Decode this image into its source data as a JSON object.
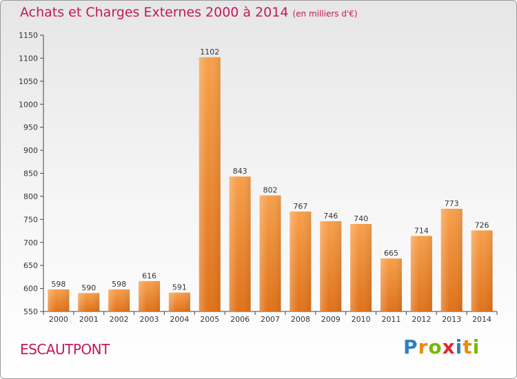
{
  "title": "Achats et Charges Externes 2000 à 2014",
  "subtitle": "(en milliers d'€)",
  "commune": "ESCAUTPONT",
  "logo": {
    "letters": [
      "P",
      "r",
      "o",
      "x",
      "i",
      "t",
      "i"
    ],
    "colors": [
      "#2f7fc1",
      "#f08a00",
      "#7ab800",
      "#e4262b",
      "#2f7fc1",
      "#f08a00",
      "#7ab800"
    ]
  },
  "chart_data": {
    "type": "bar",
    "title": "Achats et Charges Externes 2000 à 2014",
    "subtitle": "(en milliers d'€)",
    "categories": [
      "2000",
      "2001",
      "2002",
      "2003",
      "2004",
      "2005",
      "2006",
      "2007",
      "2008",
      "2009",
      "2010",
      "2011",
      "2012",
      "2013",
      "2014"
    ],
    "values": [
      598,
      590,
      598,
      616,
      591,
      1102,
      843,
      802,
      767,
      746,
      740,
      665,
      714,
      773,
      726
    ],
    "ylim": [
      550,
      1150
    ],
    "yticks": [
      550,
      600,
      650,
      700,
      750,
      800,
      850,
      900,
      950,
      1000,
      1050,
      1100,
      1150
    ],
    "grid": false,
    "bar_color": "#f08a30"
  }
}
